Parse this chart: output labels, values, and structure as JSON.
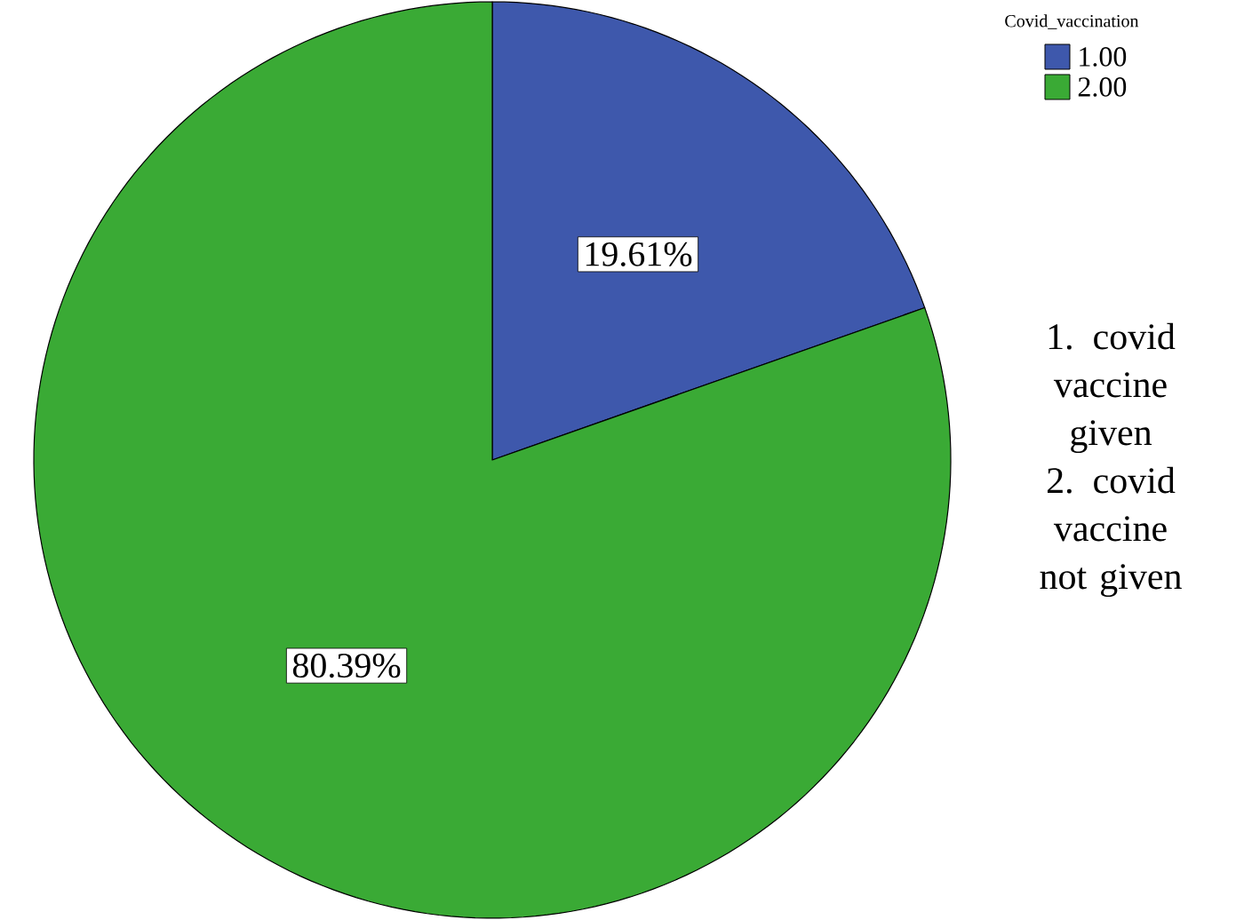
{
  "chart_data": {
    "type": "pie",
    "categories": [
      "1.00",
      "2.00"
    ],
    "values": [
      19.61,
      80.39
    ],
    "colors": [
      "#3e58ac",
      "#3aaa35"
    ],
    "value_labels": [
      "19.61%",
      "80.39%"
    ],
    "legend_title": "Covid_vaccination",
    "legend": "top right",
    "annotations": [
      "1. covid vaccine given",
      "2. covid vaccine not given"
    ]
  }
}
